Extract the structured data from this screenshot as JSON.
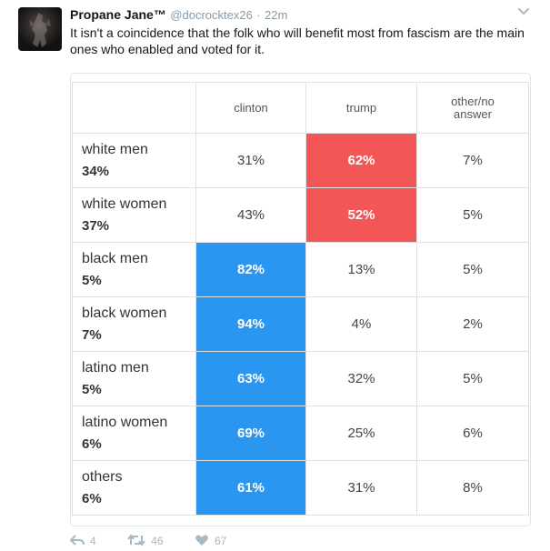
{
  "tweet": {
    "author_name": "Propane Jane™",
    "handle": "@docrocktex26",
    "separator": "·",
    "time": "22m",
    "text": "It isn't a coincidence that the folk who will benefit most from fascism are the main ones who enabled and voted for it."
  },
  "table": {
    "columns": [
      "clinton",
      "trump",
      "other/no answer"
    ],
    "rows": [
      {
        "group": "white men",
        "share": "34%",
        "clinton": "31%",
        "trump": "62%",
        "other": "7%",
        "winner": "trump"
      },
      {
        "group": "white women",
        "share": "37%",
        "clinton": "43%",
        "trump": "52%",
        "other": "5%",
        "winner": "trump"
      },
      {
        "group": "black men",
        "share": "5%",
        "clinton": "82%",
        "trump": "13%",
        "other": "5%",
        "winner": "clinton"
      },
      {
        "group": "black women",
        "share": "7%",
        "clinton": "94%",
        "trump": "4%",
        "other": "2%",
        "winner": "clinton"
      },
      {
        "group": "latino men",
        "share": "5%",
        "clinton": "63%",
        "trump": "32%",
        "other": "5%",
        "winner": "clinton"
      },
      {
        "group": "latino women",
        "share": "6%",
        "clinton": "69%",
        "trump": "25%",
        "other": "6%",
        "winner": "clinton"
      },
      {
        "group": "others",
        "share": "6%",
        "clinton": "61%",
        "trump": "31%",
        "other": "8%",
        "winner": "clinton"
      }
    ],
    "colors": {
      "clinton": "#2b96f0",
      "trump": "#f35656"
    }
  },
  "actions": {
    "reply_count": "4",
    "retweet_count": "46",
    "like_count": "67"
  }
}
